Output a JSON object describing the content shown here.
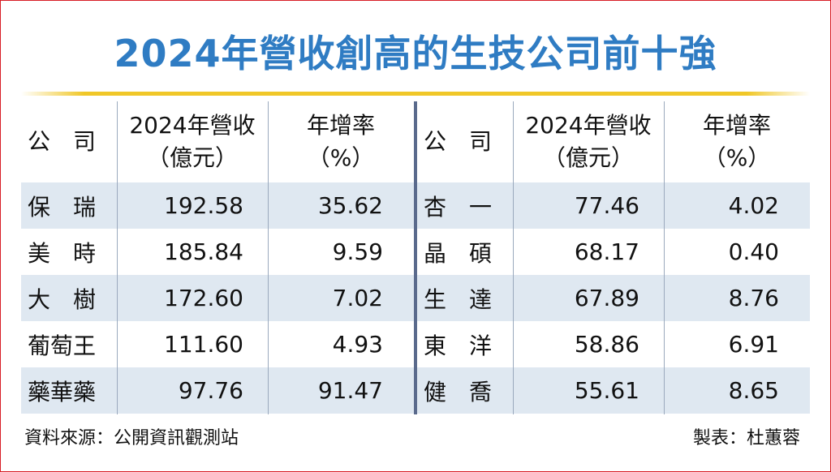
{
  "title": "2024年營收創高的生技公司前十強",
  "headers": {
    "company": "公　司",
    "revenue_line1": "2024年營收",
    "revenue_line2": "（億元）",
    "growth_line1": "年增率",
    "growth_line2": "（%）"
  },
  "left_rows": [
    {
      "company": "保　瑞",
      "revenue": "192.58",
      "growth": "35.62"
    },
    {
      "company": "美　時",
      "revenue": "185.84",
      "growth": "9.59"
    },
    {
      "company": "大　樹",
      "revenue": "172.60",
      "growth": "7.02"
    },
    {
      "company": "葡萄王",
      "revenue": "111.60",
      "growth": "4.93"
    },
    {
      "company": "藥華藥",
      "revenue": "97.76",
      "growth": "91.47"
    }
  ],
  "right_rows": [
    {
      "company": "杏　一",
      "revenue": "77.46",
      "growth": "4.02"
    },
    {
      "company": "晶　碩",
      "revenue": "68.17",
      "growth": "0.40"
    },
    {
      "company": "生　達",
      "revenue": "67.89",
      "growth": "8.76"
    },
    {
      "company": "東　洋",
      "revenue": "58.86",
      "growth": "6.91"
    },
    {
      "company": "健　喬",
      "revenue": "55.61",
      "growth": "8.65"
    }
  ],
  "footer": {
    "source": "資料來源：公開資訊觀測站",
    "credit": "製表：杜蕙蓉"
  },
  "colors": {
    "title": "#2f7cc3",
    "title_rule": "#f0c728",
    "row_shade": "#dfe8f1",
    "frame": "#d81f26"
  }
}
